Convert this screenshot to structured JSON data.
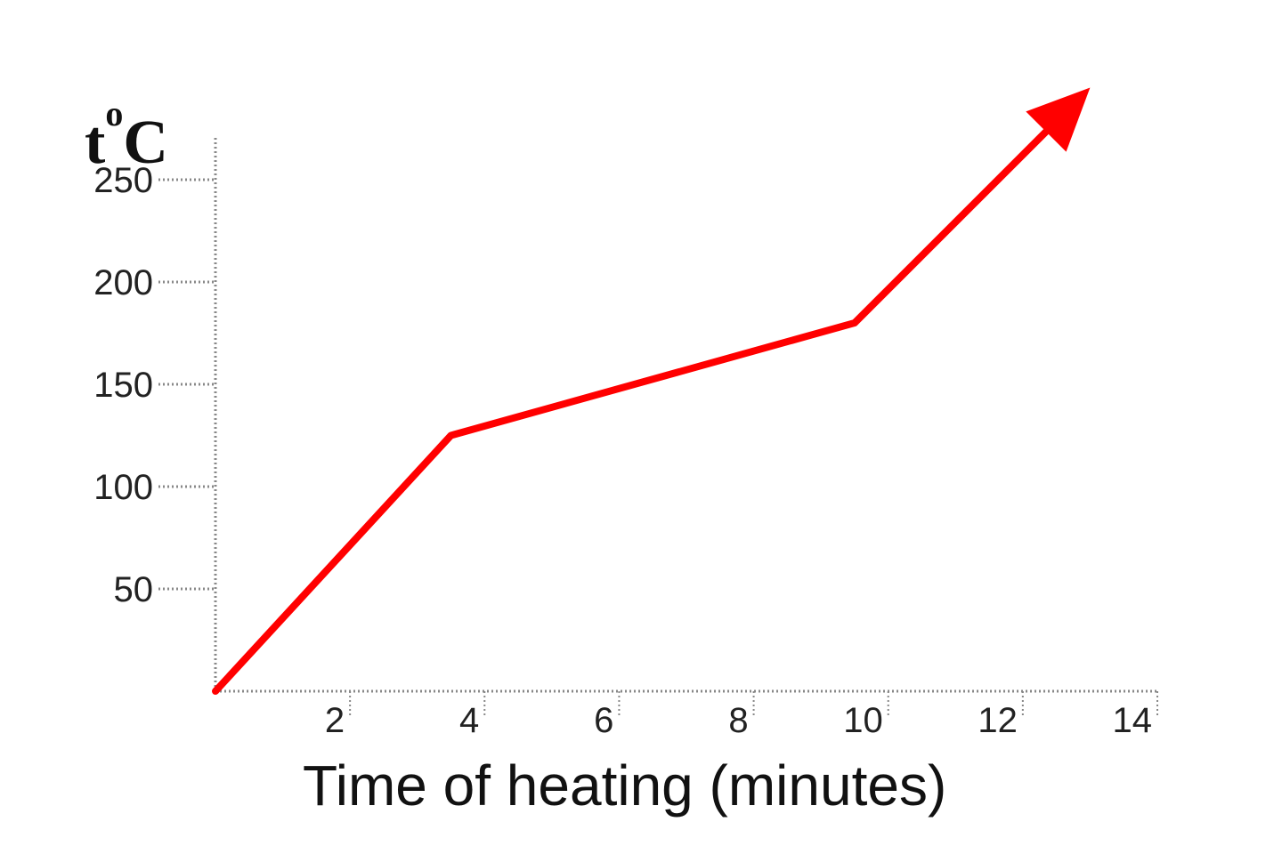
{
  "chart_data": {
    "type": "line",
    "title": "",
    "xlabel": "Time of heating (minutes)",
    "ylabel": {
      "main": "t",
      "superscript": "o",
      "unit": "C"
    },
    "xlim": [
      0,
      14
    ],
    "ylim": [
      0,
      280
    ],
    "x_ticks": [
      2,
      4,
      6,
      8,
      10,
      12,
      14
    ],
    "y_ticks": [
      50,
      100,
      150,
      200,
      250
    ],
    "x_tick_labels": [
      "2",
      "4",
      "6",
      "8",
      "10",
      "12",
      "14"
    ],
    "y_tick_labels": [
      "50",
      "100",
      "150",
      "200",
      "250"
    ],
    "grid": false,
    "legend": "none",
    "series": [
      {
        "x": [
          0,
          3.5,
          9.5,
          13
        ],
        "y": [
          0,
          125,
          180,
          295
        ],
        "end_marker": "arrow"
      }
    ],
    "colors": {
      "line": "#ff0000",
      "axis": "#888888",
      "text": "#222222"
    }
  }
}
